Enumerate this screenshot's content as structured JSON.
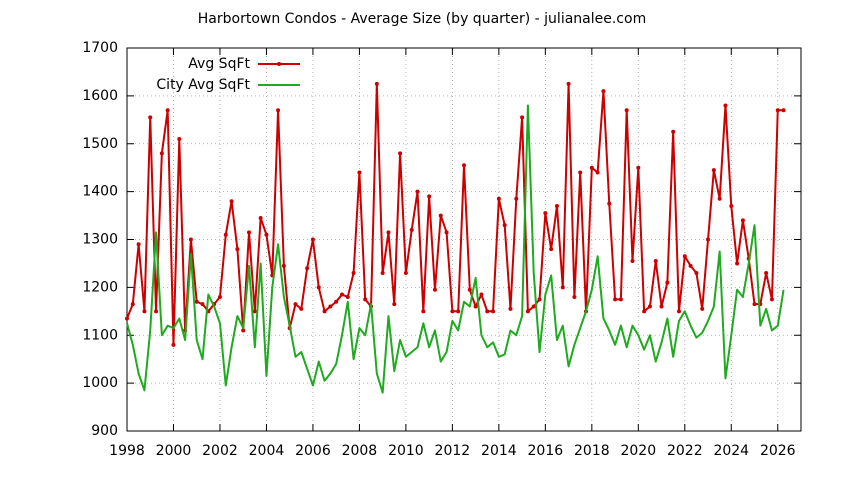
{
  "chart_data": {
    "type": "line",
    "title": "Harbortown Condos - Average Size (by quarter) - julianalee.com",
    "x": [
      1998,
      1998.25,
      1998.5,
      1998.75,
      1999,
      1999.25,
      1999.5,
      1999.75,
      2000,
      2000.25,
      2000.5,
      2000.75,
      2001,
      2001.25,
      2001.5,
      2001.75,
      2002,
      2002.25,
      2002.5,
      2002.75,
      2003,
      2003.25,
      2003.5,
      2003.75,
      2004,
      2004.25,
      2004.5,
      2004.75,
      2005,
      2005.25,
      2005.5,
      2005.75,
      2006,
      2006.25,
      2006.5,
      2006.75,
      2007,
      2007.25,
      2007.5,
      2007.75,
      2008,
      2008.25,
      2008.5,
      2008.75,
      2009,
      2009.25,
      2009.5,
      2009.75,
      2010,
      2010.25,
      2010.5,
      2010.75,
      2011,
      2011.25,
      2011.5,
      2011.75,
      2012,
      2012.25,
      2012.5,
      2012.75,
      2013,
      2013.25,
      2013.5,
      2013.75,
      2014,
      2014.25,
      2014.5,
      2014.75,
      2015,
      2015.25,
      2015.5,
      2015.75,
      2016,
      2016.25,
      2016.5,
      2016.75,
      2017,
      2017.25,
      2017.5,
      2017.75,
      2018,
      2018.25,
      2018.5,
      2018.75,
      2019,
      2019.25,
      2019.5,
      2019.75,
      2020,
      2020.25,
      2020.5,
      2020.75,
      2021,
      2021.25,
      2021.5,
      2021.75,
      2022,
      2022.25,
      2022.5,
      2022.75,
      2023,
      2023.25,
      2023.5,
      2023.75,
      2024,
      2024.25,
      2024.5,
      2024.75,
      2025,
      2025.25,
      2025.5,
      2025.75,
      2026,
      2026.25
    ],
    "series": [
      {
        "name": "Avg SqFt",
        "color": "#cc0000",
        "markers": true,
        "values": [
          1135,
          1165,
          1290,
          1150,
          1555,
          1150,
          1480,
          1570,
          1080,
          1510,
          1110,
          1300,
          1170,
          1165,
          1150,
          1165,
          1180,
          1310,
          1380,
          1280,
          1110,
          1315,
          1150,
          1345,
          1310,
          1225,
          1570,
          1245,
          1115,
          1165,
          1155,
          1240,
          1300,
          1200,
          1150,
          1160,
          1170,
          1185,
          1180,
          1230,
          1440,
          1175,
          1160,
          1625,
          1230,
          1315,
          1165,
          1480,
          1230,
          1320,
          1400,
          1150,
          1390,
          1195,
          1350,
          1315,
          1150,
          1150,
          1455,
          1195,
          1160,
          1185,
          1150,
          1150,
          1385,
          1330,
          1155,
          1385,
          1555,
          1150,
          1160,
          1175,
          1355,
          1280,
          1370,
          1200,
          1625,
          1180,
          1440,
          1150,
          1450,
          1440,
          1610,
          1375,
          1175,
          1175,
          1570,
          1255,
          1450,
          1150,
          1160,
          1255,
          1160,
          1210,
          1525,
          1150,
          1265,
          1245,
          1230,
          1155,
          1300,
          1445,
          1385,
          1580,
          1370,
          1250,
          1340,
          1260,
          1165,
          1165,
          1230,
          1175,
          1570,
          1570
        ]
      },
      {
        "name": "City Avg SqFt",
        "color": "#1faa1f",
        "markers": false,
        "values": [
          1125,
          1080,
          1020,
          985,
          1110,
          1315,
          1100,
          1120,
          1115,
          1135,
          1090,
          1270,
          1090,
          1050,
          1185,
          1160,
          1125,
          995,
          1075,
          1140,
          1115,
          1245,
          1075,
          1250,
          1015,
          1200,
          1290,
          1180,
          1120,
          1055,
          1065,
          1030,
          995,
          1045,
          1005,
          1020,
          1040,
          1100,
          1170,
          1050,
          1115,
          1100,
          1165,
          1020,
          980,
          1140,
          1025,
          1090,
          1055,
          1065,
          1075,
          1125,
          1075,
          1110,
          1045,
          1065,
          1130,
          1110,
          1170,
          1160,
          1220,
          1100,
          1075,
          1085,
          1055,
          1060,
          1110,
          1100,
          1140,
          1580,
          1230,
          1065,
          1185,
          1225,
          1090,
          1120,
          1035,
          1080,
          1115,
          1150,
          1195,
          1265,
          1135,
          1110,
          1080,
          1120,
          1075,
          1120,
          1100,
          1070,
          1100,
          1045,
          1085,
          1135,
          1055,
          1130,
          1150,
          1120,
          1095,
          1105,
          1130,
          1160,
          1275,
          1010,
          1100,
          1195,
          1180,
          1250,
          1330,
          1120,
          1155,
          1110,
          1120,
          1195
        ]
      }
    ],
    "xlim": [
      1998,
      2027
    ],
    "xticks": [
      1998,
      2000,
      2002,
      2004,
      2006,
      2008,
      2010,
      2012,
      2014,
      2016,
      2018,
      2020,
      2022,
      2024,
      2026
    ],
    "ylim": [
      900,
      1700
    ],
    "yticks": [
      900,
      1000,
      1100,
      1200,
      1300,
      1400,
      1500,
      1600,
      1700
    ],
    "grid": true,
    "legend": "top-left"
  }
}
